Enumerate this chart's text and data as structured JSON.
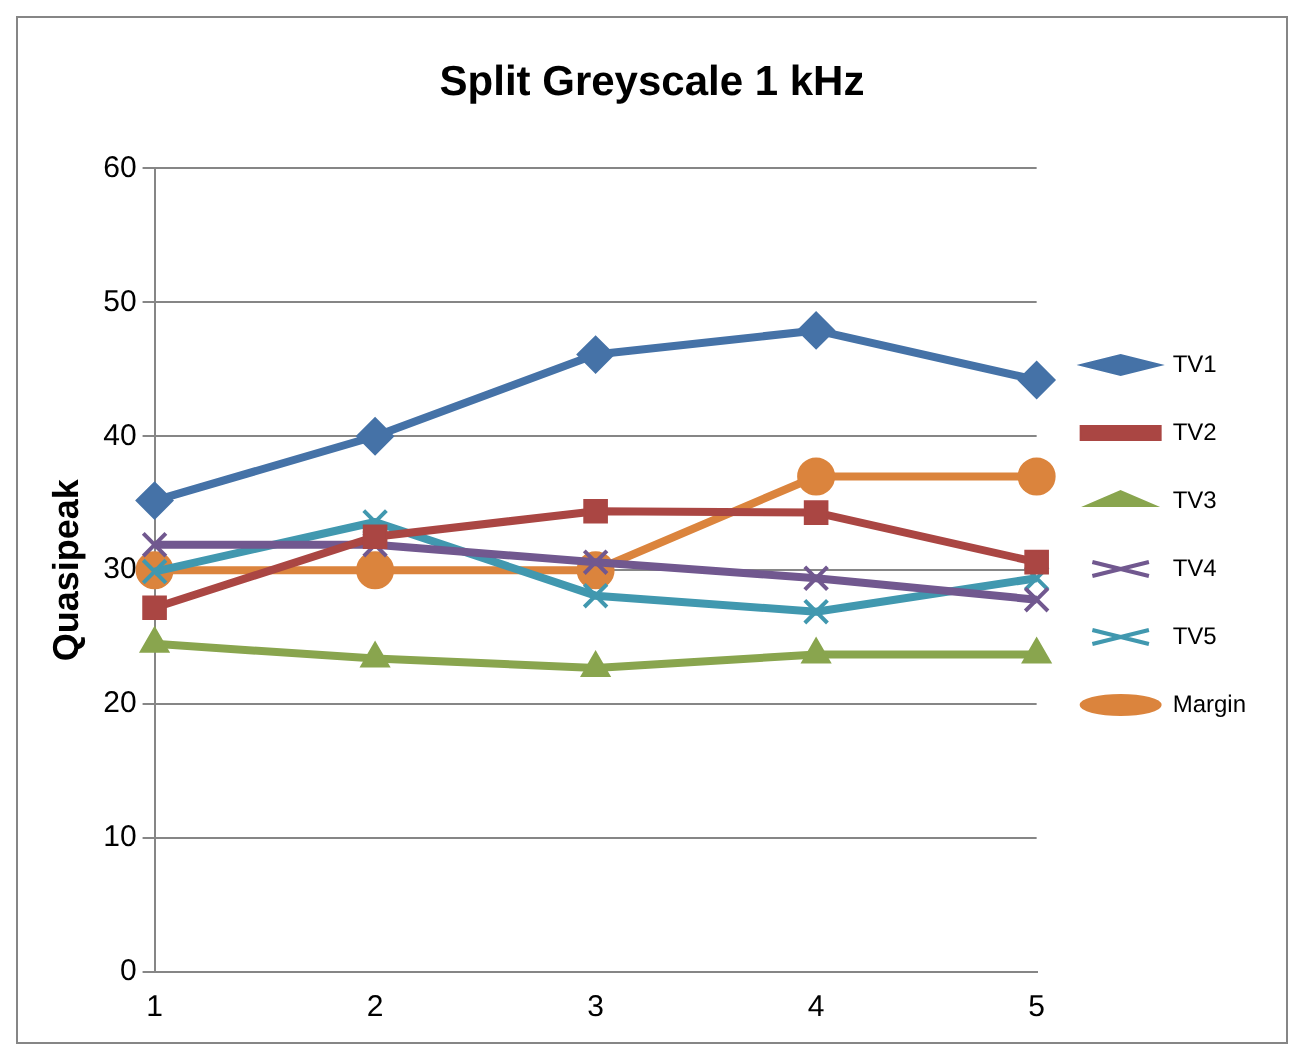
{
  "chart_data": {
    "type": "line",
    "title": "Split Greyscale 1 kHz",
    "ylabel": "Quasipeak",
    "categories": [
      "1",
      "2",
      "3",
      "4",
      "5"
    ],
    "series": [
      {
        "name": "TV1",
        "color": "#4572a7",
        "marker": "diamond",
        "values": [
          35.2,
          40,
          46.1,
          47.9,
          44.2
        ]
      },
      {
        "name": "TV2",
        "color": "#aa4643",
        "marker": "square",
        "values": [
          27.2,
          32.5,
          34.4,
          34.3,
          30.6
        ]
      },
      {
        "name": "TV3",
        "color": "#89a54e",
        "marker": "triangle",
        "values": [
          24.5,
          23.4,
          22.7,
          23.7,
          23.7
        ]
      },
      {
        "name": "TV4",
        "color": "#71588f",
        "marker": "cross",
        "values": [
          31.9,
          31.9,
          30.6,
          29.4,
          27.8
        ]
      },
      {
        "name": "TV5",
        "color": "#4198af",
        "marker": "cross",
        "values": [
          29.9,
          33.6,
          28.1,
          26.9,
          29.4
        ]
      },
      {
        "name": "Margin",
        "color": "#db843d",
        "marker": "circle",
        "values": [
          30,
          30,
          30,
          37,
          37
        ]
      }
    ],
    "ylim": [
      0,
      60
    ],
    "yticks": [
      0,
      10,
      20,
      30,
      40,
      50,
      60
    ],
    "grid": "y",
    "legend": "right"
  }
}
